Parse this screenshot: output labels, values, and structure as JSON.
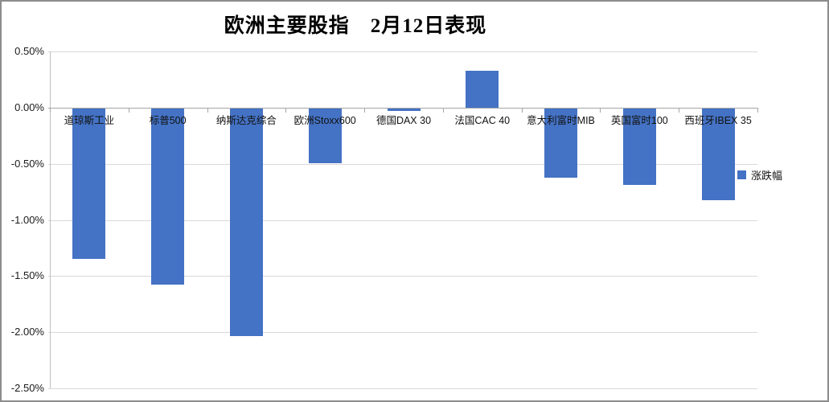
{
  "chart_data": {
    "type": "bar",
    "title": "欧洲主要股指　2月12日表现",
    "categories": [
      "道琼斯工业",
      "标普500",
      "纳斯达克综合",
      "欧洲Stoxx600",
      "德国DAX 30",
      "法国CAC 40",
      "意大利富时MIB",
      "英国富时100",
      "西班牙IBEX 35"
    ],
    "series": [
      {
        "name": "涨跌幅",
        "values": [
          -1.34,
          -1.57,
          -2.03,
          -0.49,
          -0.02,
          0.33,
          -0.62,
          -0.68,
          -0.82
        ]
      }
    ],
    "unit": "%",
    "y_ticks": [
      "0.50%",
      "0.00%",
      "-0.50%",
      "-1.00%",
      "-1.50%",
      "-2.00%",
      "-2.50%"
    ],
    "ylim": [
      0.5,
      -2.5
    ],
    "grid": true,
    "legend_position": "right-middle",
    "xlabel": "",
    "ylabel": "",
    "colors": {
      "bar": "#4472C4",
      "gridline": "#D9D9D9",
      "zero_axis": "#A6A6A6",
      "axis_line": "#BFBFBF",
      "frame_border": "#8C8C8C",
      "text": "#1A1A1A"
    }
  }
}
